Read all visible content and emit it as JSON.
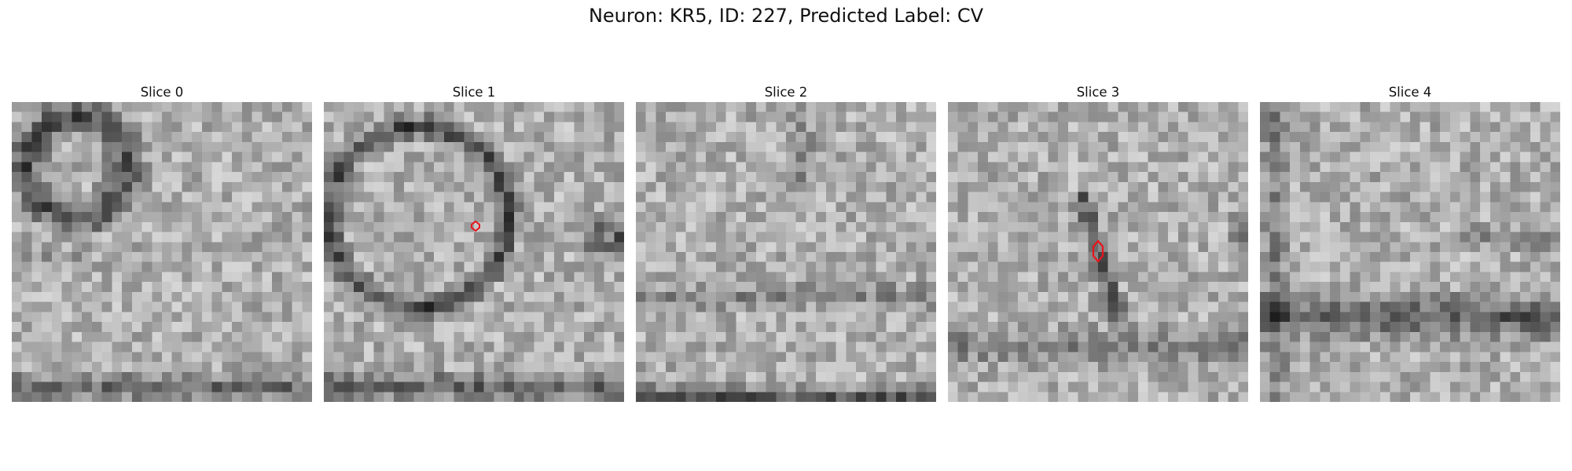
{
  "figure": {
    "title": "Neuron: KR5, ID: 227, Predicted Label: CV"
  },
  "colors": {
    "marker": "#e8141b",
    "background": "#ffffff",
    "colormap": "gray"
  },
  "slices": [
    {
      "title": "Slice 0",
      "has_marker": false
    },
    {
      "title": "Slice 1",
      "has_marker": true
    },
    {
      "title": "Slice 2",
      "has_marker": false
    },
    {
      "title": "Slice 3",
      "has_marker": true
    },
    {
      "title": "Slice 4",
      "has_marker": false
    }
  ]
}
